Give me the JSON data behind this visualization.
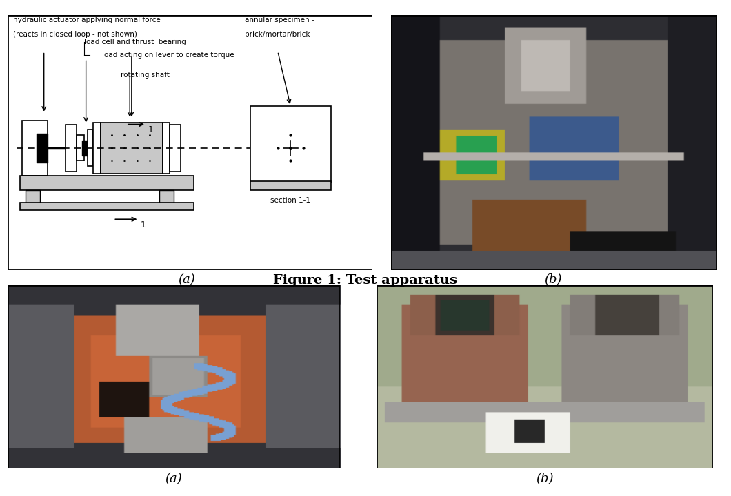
{
  "figure_caption": "Figure 1: Test apparatus",
  "label_a1": "(a)",
  "label_b1": "(b)",
  "label_a2": "(a)",
  "label_b2": "(b)",
  "bg_color": "#ffffff",
  "caption_fontsize": 14,
  "label_fontsize": 13,
  "diagram_text": {
    "line1": "hydraulic actuator applying normal force",
    "line2": "(reacts in closed loop - not shown)",
    "load_cell": "load cell and thrust  bearing",
    "load_lever": "load acting on lever to create torque",
    "rot_shaft": "rotating shaft",
    "annular1": "annular specimen -",
    "annular2": "brick/mortar/brick",
    "section": "section 1-1",
    "num1a": "1",
    "num1b": "1"
  },
  "light_gray": "#c8c8c8",
  "dark_gray": "#888888",
  "photo1_dominant": "#5a6a7a",
  "photo2_dominant": "#b05030",
  "photo3_dominant": "#8a7060"
}
